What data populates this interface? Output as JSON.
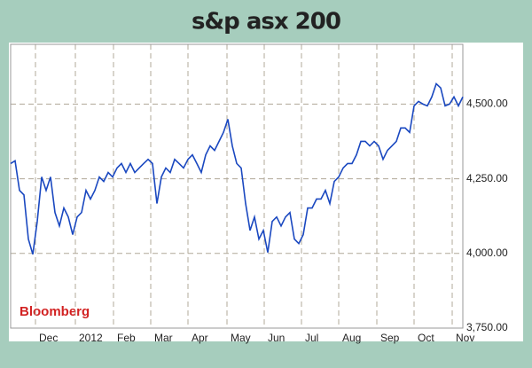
{
  "chart_data": {
    "type": "line",
    "title": "s&p asx 200",
    "annotation": "Bloomberg",
    "color": "#1a48c0",
    "grid": true,
    "xlim": [
      0,
      102
    ],
    "xticks": [
      {
        "value": 5.6,
        "label": "Dec"
      },
      {
        "value": 14.6,
        "label": "2012"
      },
      {
        "value": 23.2,
        "label": "Feb"
      },
      {
        "value": 31.6,
        "label": "Mar"
      },
      {
        "value": 40,
        "label": "Apr"
      },
      {
        "value": 48.8,
        "label": "May"
      },
      {
        "value": 57.2,
        "label": "Jun"
      },
      {
        "value": 65.6,
        "label": "Jul"
      },
      {
        "value": 74,
        "label": "Aug"
      },
      {
        "value": 82.6,
        "label": "Sep"
      },
      {
        "value": 91,
        "label": "Oct"
      },
      {
        "value": 99.6,
        "label": "Nov"
      }
    ],
    "ylim": [
      3750,
      4700
    ],
    "yticks": [
      {
        "value": 3750,
        "label": "3,750.00"
      },
      {
        "value": 4000,
        "label": "4,000.00"
      },
      {
        "value": 4250,
        "label": "4,250.00"
      },
      {
        "value": 4500,
        "label": "4,500.00"
      }
    ],
    "values": [
      4301,
      4310,
      4211,
      4196,
      4048,
      3997,
      4107,
      4256,
      4211,
      4256,
      4137,
      4092,
      4152,
      4122,
      4063,
      4122,
      4137,
      4211,
      4182,
      4211,
      4256,
      4241,
      4271,
      4256,
      4286,
      4301,
      4271,
      4301,
      4271,
      4286,
      4301,
      4315,
      4301,
      4167,
      4256,
      4286,
      4271,
      4315,
      4301,
      4286,
      4315,
      4330,
      4301,
      4271,
      4330,
      4360,
      4345,
      4375,
      4405,
      4449,
      4360,
      4301,
      4286,
      4167,
      4077,
      4122,
      4048,
      4077,
      4003,
      4107,
      4122,
      4092,
      4122,
      4137,
      4048,
      4033,
      4063,
      4152,
      4152,
      4182,
      4182,
      4211,
      4167,
      4241,
      4256,
      4286,
      4301,
      4301,
      4330,
      4375,
      4375,
      4360,
      4375,
      4360,
      4315,
      4345,
      4360,
      4375,
      4420,
      4420,
      4405,
      4494,
      4509,
      4500,
      4494,
      4524,
      4568,
      4554,
      4494,
      4500,
      4524,
      4494,
      4524
    ]
  }
}
